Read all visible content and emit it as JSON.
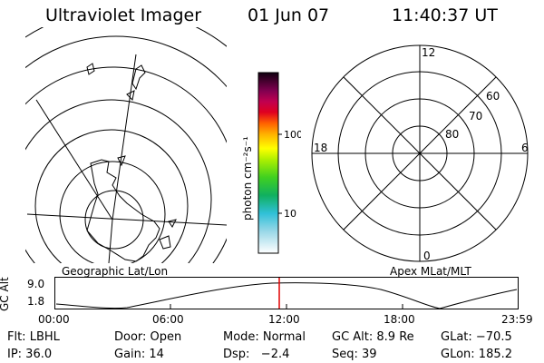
{
  "header": {
    "title": "Ultraviolet Imager",
    "date": "01 Jun 07",
    "time": "11:40:37 UT"
  },
  "colorbar": {
    "unit": "photon cm⁻²s⁻¹",
    "ticks": [
      "100",
      "10"
    ]
  },
  "polar_grid": {
    "hour_labels": {
      "top": "12",
      "left": "18",
      "right": "6",
      "bottom": "0"
    },
    "lat_labels": [
      "60",
      "70",
      "80"
    ]
  },
  "panel_labels": {
    "geographic": "Geographic Lat/Lon",
    "apex": "Apex MLat/MLT"
  },
  "altitude_plot": {
    "ylabel": "GC Alt",
    "yticks": [
      "9.0",
      "1.8"
    ],
    "xticks": [
      "00:00",
      "06:00",
      "12:00",
      "18:00",
      "23:59"
    ]
  },
  "info": {
    "row1": {
      "flt": "Flt: LBHL",
      "door": "Door: Open",
      "mode": "Mode: Normal",
      "gcalt": "GC Alt: 8.9 Re",
      "glat": "GLat: −70.5"
    },
    "row2": {
      "ip": "IP: 36.0",
      "gain": "Gain: 14",
      "dsp": "Dsp:   −2.4",
      "seq": "Seq: 39",
      "glon": "GLon: 185.2"
    }
  }
}
